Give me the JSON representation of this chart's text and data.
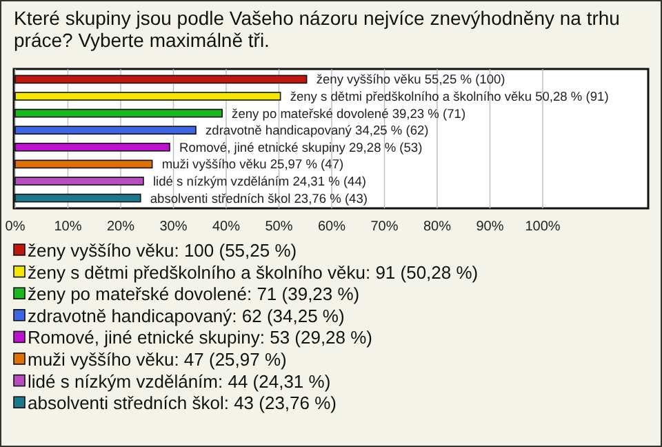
{
  "chart_data": {
    "type": "bar",
    "orientation": "horizontal",
    "title": "Které skupiny jsou podle Vašeho názoru nejvíce znevýhodněny na trhu práce? Vyberte maximálně tři.",
    "categories": [
      "ženy vyššího věku",
      "ženy s dětmi předškolního a školního věku",
      "ženy po mateřské dovolené",
      "zdravotně handicapovaný",
      "Romové, jiné etnické skupiny",
      "muži vyššího věku",
      "lidé s nízkým vzděláním",
      "absolventi středních škol"
    ],
    "values": [
      55.25,
      50.28,
      39.23,
      34.25,
      29.28,
      25.97,
      24.31,
      23.76
    ],
    "colors": [
      "#c0160e",
      "#f5e600",
      "#19b81c",
      "#3d66e6",
      "#c010d0",
      "#e07000",
      "#b84cc0",
      "#1a7a8c"
    ],
    "value_labels": [
      "55,25 % (100)",
      "50,28 % (91)",
      "39,23 % (71)",
      "34,25 % (62)",
      "29,28 % (53)",
      "25,97 % (47)",
      "24,31 % (44)",
      "23,76 % (43)"
    ],
    "xlim": [
      0,
      120
    ],
    "xticks": [
      {
        "value": 0,
        "label": "0%"
      },
      {
        "value": 10,
        "label": "10%"
      },
      {
        "value": 20,
        "label": "20%"
      },
      {
        "value": 30,
        "label": "30%"
      },
      {
        "value": 40,
        "label": "40%"
      },
      {
        "value": 50,
        "label": "50%"
      },
      {
        "value": 60,
        "label": "60%"
      },
      {
        "value": 70,
        "label": "70%"
      },
      {
        "value": 80,
        "label": "80%"
      },
      {
        "value": 90,
        "label": "90%"
      },
      {
        "value": 100,
        "label": "100%"
      }
    ],
    "grid": "x",
    "annotations": [
      "ženy vyššího věku: 100 (55,25 %)",
      "ženy s dětmi předškolního a školního věku: 91 (50,28 %)",
      "ženy po mateřské dovolené: 71 (39,23 %)",
      "zdravotně handicapovaný: 62 (34,25 %)",
      "Romové, jiné etnické skupiny: 53 (29,28 %)",
      "muži vyššího věku: 47 (25,97 %)",
      "lidé s nízkým vzděláním: 44 (24,31 %)",
      "absolventi středních škol: 43 (23,76 %)"
    ]
  }
}
